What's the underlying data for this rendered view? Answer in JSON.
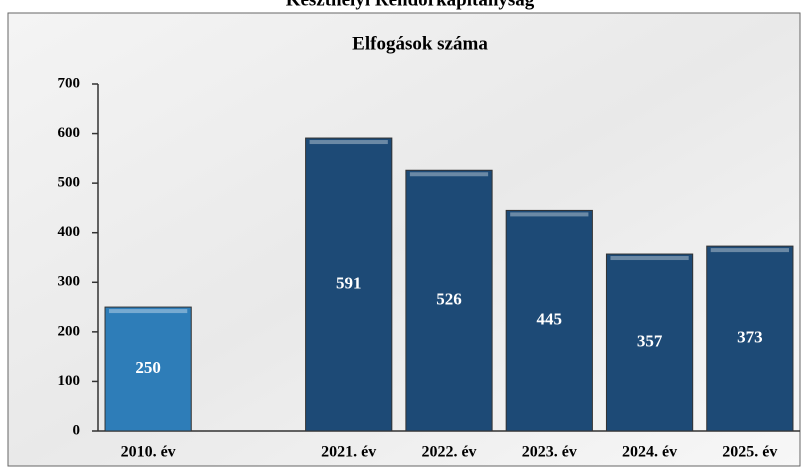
{
  "header": "Keszthelyi Rendőrkapitányság",
  "chart_data": {
    "type": "bar",
    "title": "Elfogások száma",
    "categories": [
      "2010. év",
      null,
      "2021. év",
      "2022. év",
      "2023. év",
      "2024. év",
      "2025. év"
    ],
    "values": [
      250,
      null,
      591,
      526,
      445,
      357,
      373
    ],
    "colors": [
      "#2e7db8",
      null,
      "#1d4a76",
      "#1d4a76",
      "#1d4a76",
      "#1d4a76",
      "#1d4a76"
    ],
    "ylim": [
      0,
      700
    ],
    "yticks": [
      0,
      100,
      200,
      300,
      400,
      500,
      600,
      700
    ],
    "grid": false
  }
}
